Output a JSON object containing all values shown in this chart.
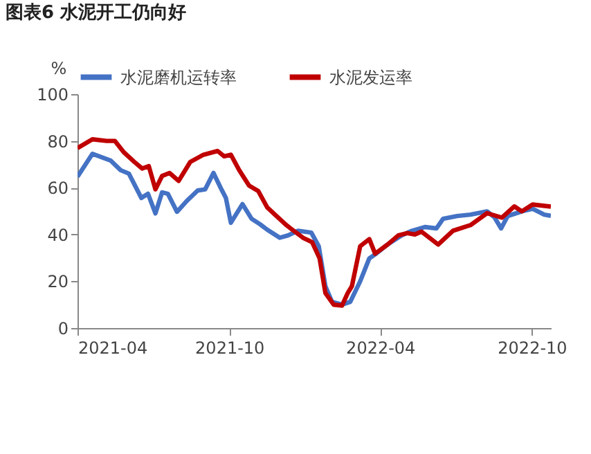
{
  "chart_data": {
    "type": "line",
    "title": "图表6 水泥开工仍向好",
    "ylabel": "%",
    "ylim": [
      0,
      100
    ],
    "yticks": [
      0,
      20,
      40,
      60,
      80,
      100
    ],
    "xlim": [
      "2021-04-01",
      "2022-10-24"
    ],
    "xticks": [
      "2021-04",
      "2021-10",
      "2022-04",
      "2022-10"
    ],
    "legend": "top",
    "series": [
      {
        "name": "水泥磨机运转率",
        "color": "#4472c4",
        "x": [
          "2021-04-01",
          "2021-04-19",
          "2021-05-11",
          "2021-05-23",
          "2021-06-02",
          "2021-06-17",
          "2021-06-25",
          "2021-07-04",
          "2021-07-12",
          "2021-07-19",
          "2021-07-30",
          "2021-08-11",
          "2021-08-24",
          "2021-09-02",
          "2021-09-12",
          "2021-09-22",
          "2021-09-27",
          "2021-10-03",
          "2021-10-17",
          "2021-10-28",
          "2021-11-07",
          "2021-11-16",
          "2021-12-01",
          "2021-12-11",
          "2021-12-23",
          "2022-01-08",
          "2022-01-17",
          "2022-01-25",
          "2022-02-02",
          "2022-02-14",
          "2022-02-24",
          "2022-03-08",
          "2022-03-19",
          "2022-03-28",
          "2022-04-10",
          "2022-04-27",
          "2022-05-08",
          "2022-05-25",
          "2022-06-08",
          "2022-06-16",
          "2022-07-03",
          "2022-07-19",
          "2022-08-08",
          "2022-08-17",
          "2022-08-25",
          "2022-09-02",
          "2022-09-19",
          "2022-10-02",
          "2022-10-16",
          "2022-10-24"
        ],
        "values": [
          64.7,
          74.5,
          71.6,
          67.5,
          66,
          55.6,
          57.4,
          49,
          58,
          57.4,
          49.7,
          54.4,
          58.8,
          59.3,
          66.3,
          59,
          55.6,
          45,
          53,
          46.7,
          44.4,
          42,
          38.6,
          39.6,
          41.6,
          40.8,
          35,
          17.9,
          11.2,
          10,
          11.2,
          20,
          29.8,
          32,
          35.7,
          39.6,
          41.4,
          43.2,
          42.6,
          46.7,
          47.9,
          48.5,
          49.9,
          47.3,
          42.6,
          47.9,
          49.9,
          51,
          48.5,
          48
        ]
      },
      {
        "name": "水泥发运率",
        "color": "#c00000",
        "x": [
          "2021-04-01",
          "2021-04-19",
          "2021-05-06",
          "2021-05-16",
          "2021-05-27",
          "2021-06-08",
          "2021-06-18",
          "2021-06-26",
          "2021-07-04",
          "2021-07-12",
          "2021-07-21",
          "2021-08-01",
          "2021-08-15",
          "2021-08-31",
          "2021-09-17",
          "2021-09-25",
          "2021-10-03",
          "2021-10-13",
          "2021-10-25",
          "2021-11-05",
          "2021-11-16",
          "2021-11-27",
          "2021-12-09",
          "2021-12-14",
          "2021-12-29",
          "2022-01-09",
          "2022-01-18",
          "2022-01-25",
          "2022-02-04",
          "2022-02-14",
          "2022-02-21",
          "2022-02-26",
          "2022-03-08",
          "2022-03-19",
          "2022-03-26",
          "2022-04-10",
          "2022-04-23",
          "2022-05-04",
          "2022-05-13",
          "2022-05-21",
          "2022-06-10",
          "2022-06-28",
          "2022-07-19",
          "2022-08-08",
          "2022-08-26",
          "2022-09-10",
          "2022-09-19",
          "2022-10-02",
          "2022-10-24"
        ],
        "values": [
          76.9,
          80.7,
          80,
          80,
          75.1,
          71.2,
          68.2,
          69.2,
          59.3,
          65,
          66.3,
          62.9,
          71,
          74.1,
          75.7,
          73.4,
          74.1,
          67.5,
          60.9,
          58.6,
          51.5,
          47.9,
          44,
          42.6,
          38.6,
          36.7,
          29.8,
          15,
          10,
          9.6,
          15,
          17.9,
          35,
          38,
          31.8,
          35.7,
          39.6,
          40.6,
          40,
          41.2,
          35.7,
          41.6,
          44,
          49.1,
          47.2,
          52,
          49.9,
          52.8,
          51.9
        ]
      }
    ]
  }
}
